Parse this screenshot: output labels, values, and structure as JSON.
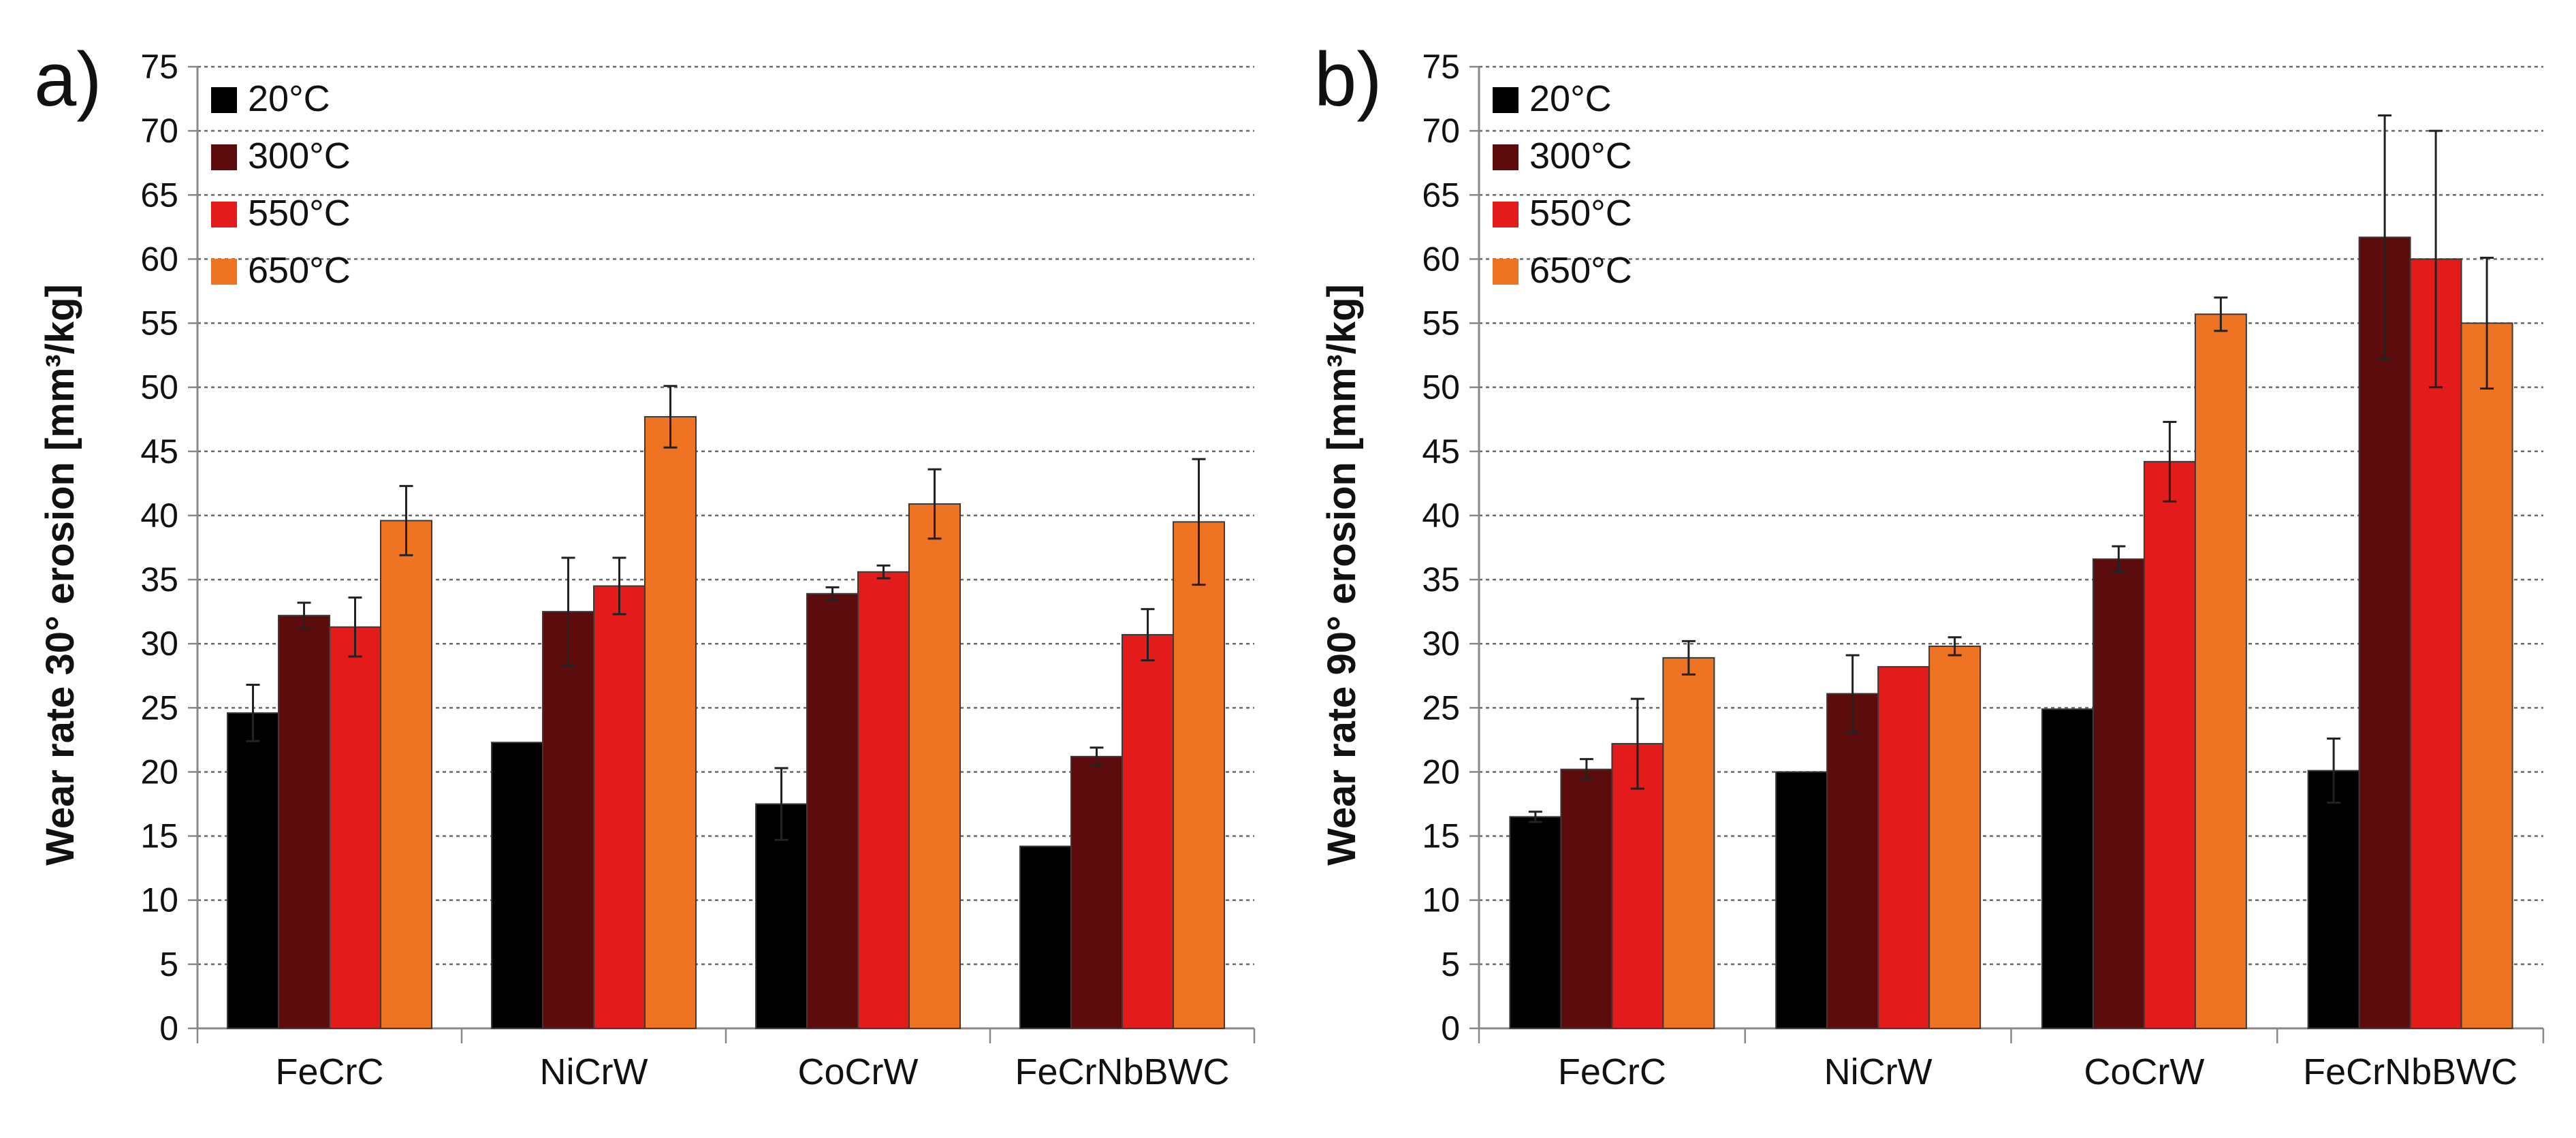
{
  "figure": {
    "panels": [
      {
        "label": "a)"
      },
      {
        "label": "b)"
      }
    ]
  },
  "chart_data": [
    {
      "type": "bar",
      "panel": "a)",
      "title": "",
      "xlabel": "",
      "ylabel": "Wear rate 30° erosion [mm³/kg]",
      "ylim": [
        0,
        75
      ],
      "yticks": [
        0,
        5,
        10,
        15,
        20,
        25,
        30,
        35,
        40,
        45,
        50,
        55,
        60,
        65,
        70,
        75
      ],
      "grid": true,
      "legend_position": "top-left",
      "categories": [
        "FeCrC",
        "NiCrW",
        "CoCrW",
        "FeCrNbBWC"
      ],
      "series": [
        {
          "name": "20°C",
          "color": "#000000",
          "values": [
            24.6,
            22.3,
            17.5,
            14.2
          ],
          "errors": [
            2.2,
            0.0,
            2.8,
            0.0
          ]
        },
        {
          "name": "300°C",
          "color": "#5c0c0c",
          "values": [
            32.2,
            32.5,
            33.9,
            21.2
          ],
          "errors": [
            1.0,
            4.2,
            0.5,
            0.7
          ]
        },
        {
          "name": "550°C",
          "color": "#e31b1b",
          "values": [
            31.3,
            34.5,
            35.6,
            30.7
          ],
          "errors": [
            2.3,
            2.2,
            0.5,
            2.0
          ]
        },
        {
          "name": "650°C",
          "color": "#ee7424",
          "values": [
            39.6,
            47.7,
            40.9,
            39.5
          ],
          "errors": [
            2.7,
            2.4,
            2.7,
            4.9
          ]
        }
      ]
    },
    {
      "type": "bar",
      "panel": "b)",
      "title": "",
      "xlabel": "",
      "ylabel": "Wear rate 90° erosion [mm³/kg]",
      "ylim": [
        0,
        75
      ],
      "yticks": [
        0,
        5,
        10,
        15,
        20,
        25,
        30,
        35,
        40,
        45,
        50,
        55,
        60,
        65,
        70,
        75
      ],
      "grid": true,
      "legend_position": "top-left",
      "categories": [
        "FeCrC",
        "NiCrW",
        "CoCrW",
        "FeCrNbBWC"
      ],
      "series": [
        {
          "name": "20°C",
          "color": "#000000",
          "values": [
            16.5,
            20.0,
            24.9,
            20.1
          ],
          "errors": [
            0.4,
            0.0,
            0.0,
            2.5
          ]
        },
        {
          "name": "300°C",
          "color": "#5c0c0c",
          "values": [
            20.2,
            26.1,
            36.6,
            61.7
          ],
          "errors": [
            0.8,
            3.0,
            1.0,
            9.5
          ]
        },
        {
          "name": "550°C",
          "color": "#e31b1b",
          "values": [
            22.2,
            28.2,
            44.2,
            60.0
          ],
          "errors": [
            3.5,
            0.0,
            3.1,
            10.0
          ]
        },
        {
          "name": "650°C",
          "color": "#ee7424",
          "values": [
            28.9,
            29.8,
            55.7,
            55.0
          ],
          "errors": [
            1.3,
            0.7,
            1.3,
            5.1
          ]
        }
      ]
    }
  ]
}
